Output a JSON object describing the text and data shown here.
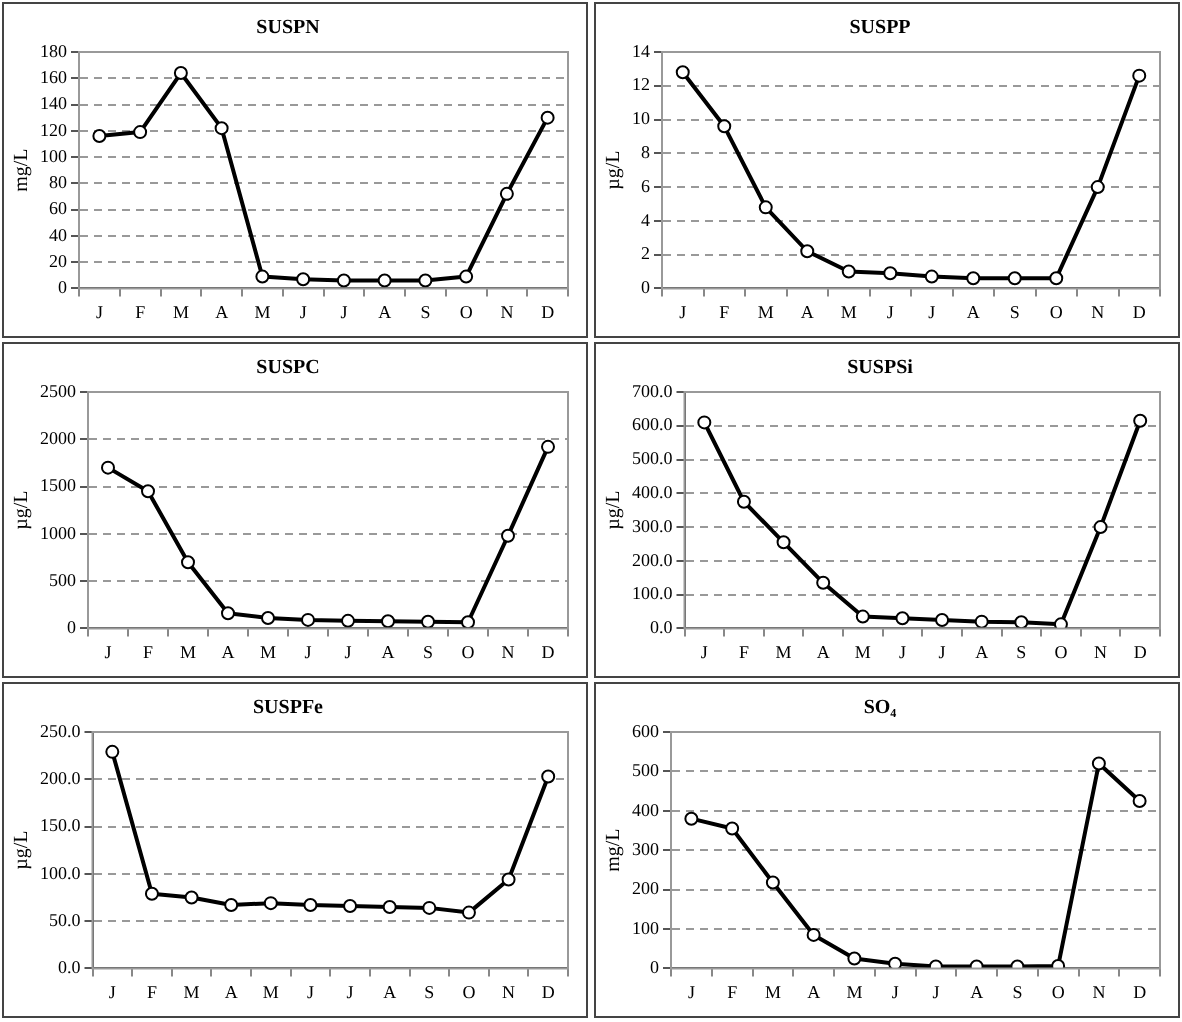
{
  "chart_data": [
    {
      "type": "line",
      "title": "SUSPN",
      "ylabel": "mg/L",
      "categories": [
        "J",
        "F",
        "M",
        "A",
        "M",
        "J",
        "J",
        "A",
        "S",
        "O",
        "N",
        "D"
      ],
      "series": [
        {
          "color": "#000000",
          "values": [
            116,
            119,
            164,
            122,
            9,
            7,
            6,
            6,
            6,
            9,
            72,
            130
          ]
        }
      ],
      "ylim": [
        0,
        180
      ],
      "yticks": [
        0,
        20,
        40,
        60,
        80,
        100,
        120,
        140,
        160,
        180
      ],
      "grid": "y",
      "marker": "circle"
    },
    {
      "type": "line",
      "title": "SUSPP",
      "ylabel": "µg/L",
      "categories": [
        "J",
        "F",
        "M",
        "A",
        "M",
        "J",
        "J",
        "A",
        "S",
        "O",
        "N",
        "D"
      ],
      "series": [
        {
          "color": "#000000",
          "values": [
            12.8,
            9.6,
            4.8,
            2.2,
            1.0,
            0.9,
            0.7,
            0.6,
            0.6,
            0.6,
            6.0,
            12.6
          ]
        }
      ],
      "ylim": [
        0,
        14
      ],
      "yticks": [
        0,
        2,
        4,
        6,
        8,
        10,
        12,
        14
      ],
      "grid": "y",
      "marker": "circle"
    },
    {
      "type": "line",
      "title": "SUSPC",
      "ylabel": "µg/L",
      "categories": [
        "J",
        "F",
        "M",
        "A",
        "M",
        "J",
        "J",
        "A",
        "S",
        "O",
        "N",
        "D"
      ],
      "series": [
        {
          "color": "#000000",
          "values": [
            1700,
            1450,
            700,
            160,
            110,
            90,
            80,
            75,
            70,
            65,
            980,
            1920
          ]
        }
      ],
      "ylim": [
        0,
        2500
      ],
      "yticks": [
        0,
        500,
        1000,
        1500,
        2000,
        2500
      ],
      "grid": "y",
      "marker": "circle"
    },
    {
      "type": "line",
      "title": "SUSPSi",
      "ylabel": "µg/L",
      "categories": [
        "J",
        "F",
        "M",
        "A",
        "M",
        "J",
        "J",
        "A",
        "S",
        "O",
        "N",
        "D"
      ],
      "series": [
        {
          "color": "#000000",
          "values": [
            610,
            375,
            255,
            135,
            35,
            30,
            25,
            20,
            18,
            12,
            300,
            615
          ]
        }
      ],
      "ylim": [
        0,
        700
      ],
      "yticks": [
        {
          "value": 0,
          "label": "0.0"
        },
        {
          "value": 100,
          "label": "100.0"
        },
        {
          "value": 200,
          "label": "200.0"
        },
        {
          "value": 300,
          "label": "300.0"
        },
        {
          "value": 400,
          "label": "400.0"
        },
        {
          "value": 500,
          "label": "500.0"
        },
        {
          "value": 600,
          "label": "600.0"
        },
        {
          "value": 700,
          "label": "700.0"
        }
      ],
      "grid": "y",
      "marker": "circle"
    },
    {
      "type": "line",
      "title": "SUSPFe",
      "ylabel": "µg/L",
      "categories": [
        "J",
        "F",
        "M",
        "A",
        "M",
        "J",
        "J",
        "A",
        "S",
        "O",
        "N",
        "D"
      ],
      "series": [
        {
          "color": "#000000",
          "values": [
            229,
            79,
            75,
            67,
            69,
            67,
            66,
            65,
            64,
            59,
            94,
            203
          ]
        }
      ],
      "ylim": [
        0,
        250
      ],
      "yticks": [
        {
          "value": 0,
          "label": "0.0"
        },
        {
          "value": 50,
          "label": "50.0"
        },
        {
          "value": 100,
          "label": "100.0"
        },
        {
          "value": 150,
          "label": "150.0"
        },
        {
          "value": 200,
          "label": "200.0"
        },
        {
          "value": 250,
          "label": "250.0"
        }
      ],
      "grid": "y",
      "marker": "circle"
    },
    {
      "type": "line",
      "title": "SO₄",
      "ylabel": "mg/L",
      "categories": [
        "J",
        "F",
        "M",
        "A",
        "M",
        "J",
        "J",
        "A",
        "S",
        "O",
        "N",
        "D"
      ],
      "series": [
        {
          "color": "#000000",
          "values": [
            380,
            355,
            218,
            85,
            25,
            12,
            5,
            5,
            5,
            6,
            520,
            425
          ]
        }
      ],
      "ylim": [
        0,
        600
      ],
      "yticks": [
        0,
        100,
        200,
        300,
        400,
        500,
        600
      ],
      "grid": "y",
      "marker": "circle"
    }
  ]
}
